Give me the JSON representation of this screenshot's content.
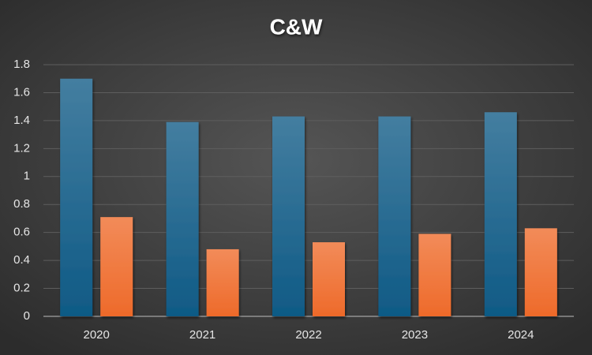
{
  "chart_data": {
    "type": "bar",
    "title": "C&W",
    "categories": [
      "2020",
      "2021",
      "2022",
      "2023",
      "2024"
    ],
    "series": [
      {
        "color": "#0f5a85",
        "values": [
          1.7,
          1.39,
          1.43,
          1.43,
          1.46
        ]
      },
      {
        "color": "#ee6a2a",
        "values": [
          0.71,
          0.48,
          0.53,
          0.59,
          0.63
        ]
      }
    ],
    "ylim": [
      0,
      1.8
    ],
    "yticks": [
      0,
      0.2,
      0.4,
      0.6,
      0.8,
      1,
      1.2,
      1.4,
      1.6,
      1.8
    ],
    "grid": true
  }
}
